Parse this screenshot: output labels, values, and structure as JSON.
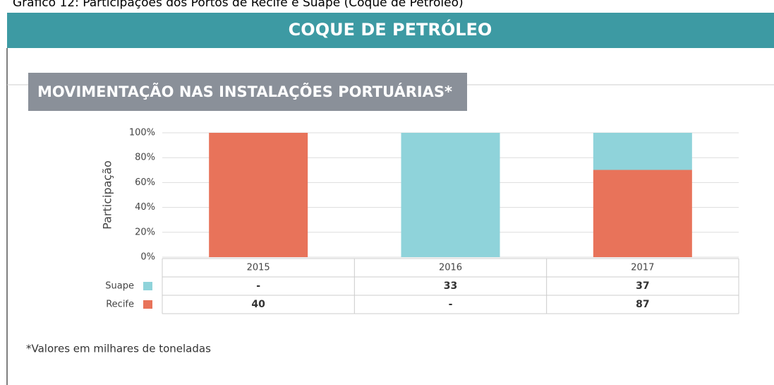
{
  "caption": "Gráfico 12: Participações dos Portos de Recife e Suape (Coque de Petróleo)",
  "banner": "COQUE DE PETRÓLEO",
  "section": "MOVIMENTAÇÃO NAS INSTALAÇÕES PORTUÁRIAS*",
  "footnote": "*Valores em milhares de toneladas",
  "chart_data": {
    "type": "stacked_percent_bar",
    "ylabel": "Participação",
    "categories": [
      "2015",
      "2016",
      "2017"
    ],
    "series": [
      {
        "name": "Recife",
        "color": "#e8735a",
        "values": [
          40,
          null,
          87
        ],
        "value_labels": [
          "40",
          "-",
          "87"
        ]
      },
      {
        "name": "Suape",
        "color": "#8fd3da",
        "values": [
          null,
          33,
          37
        ],
        "value_labels": [
          "-",
          "33",
          "37"
        ]
      }
    ],
    "table_order": [
      1,
      0
    ],
    "ylim": [
      0,
      100
    ],
    "yticks": [
      {
        "value": 0,
        "label": "0%"
      },
      {
        "value": 20,
        "label": "20%"
      },
      {
        "value": 40,
        "label": "40%"
      },
      {
        "value": 60,
        "label": "60%"
      },
      {
        "value": 80,
        "label": "80%"
      },
      {
        "value": 100,
        "label": "100%"
      }
    ],
    "grid": true
  }
}
